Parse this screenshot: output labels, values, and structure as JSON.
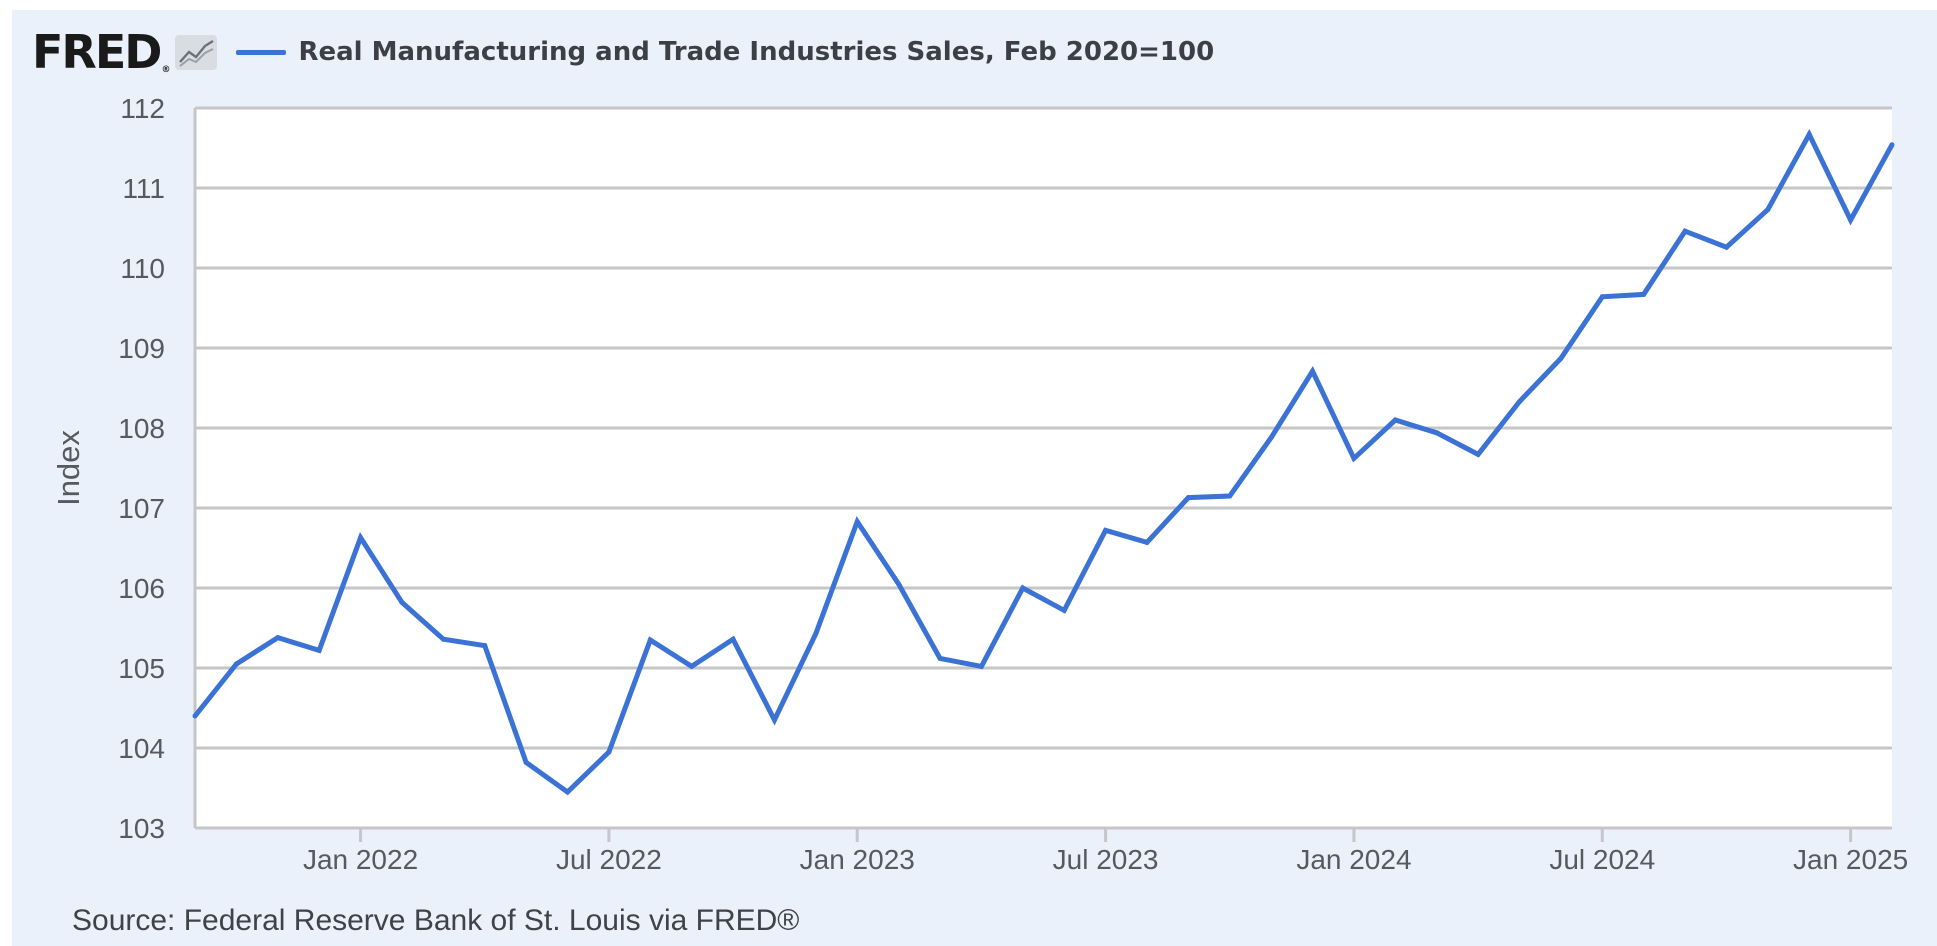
{
  "header": {
    "logo_text": "FRED",
    "logo_mark": "®",
    "logo_icon": "line-chart-icon",
    "legend_label": "Real Manufacturing and Trade Industries Sales, Feb 2020=100"
  },
  "source": "Source: Federal Reserve Bank of St. Louis via FRED®",
  "colors": {
    "series": "#3a72d6",
    "background": "#eaf1fa",
    "plot_background": "#ffffff",
    "gridline": "#c6c6c6"
  },
  "chart_data": {
    "type": "line",
    "title": "",
    "xlabel": "",
    "ylabel": "Index",
    "ylim": [
      103,
      112
    ],
    "xlim": [
      "2021-09",
      "2025-02"
    ],
    "grid": true,
    "legend_position": "top-left",
    "y_ticks": [
      "103",
      "104",
      "105",
      "106",
      "107",
      "108",
      "109",
      "110",
      "111",
      "112"
    ],
    "x_ticks": [
      {
        "label": "Jan 2022",
        "date": "2022-01"
      },
      {
        "label": "Jul 2022",
        "date": "2022-07"
      },
      {
        "label": "Jan 2023",
        "date": "2023-01"
      },
      {
        "label": "Jul 2023",
        "date": "2023-07"
      },
      {
        "label": "Jan 2024",
        "date": "2024-01"
      },
      {
        "label": "Jul 2024",
        "date": "2024-07"
      },
      {
        "label": "Jan 2025",
        "date": "2025-01"
      }
    ],
    "series": [
      {
        "name": "Real Manufacturing and Trade Industries Sales, Feb 2020=100",
        "x": [
          "2021-09",
          "2021-10",
          "2021-11",
          "2021-12",
          "2022-01",
          "2022-02",
          "2022-03",
          "2022-04",
          "2022-05",
          "2022-06",
          "2022-07",
          "2022-08",
          "2022-09",
          "2022-10",
          "2022-11",
          "2022-12",
          "2023-01",
          "2023-02",
          "2023-03",
          "2023-04",
          "2023-05",
          "2023-06",
          "2023-07",
          "2023-08",
          "2023-09",
          "2023-10",
          "2023-11",
          "2023-12",
          "2024-01",
          "2024-02",
          "2024-03",
          "2024-04",
          "2024-05",
          "2024-06",
          "2024-07",
          "2024-08",
          "2024-09",
          "2024-10",
          "2024-11",
          "2024-12",
          "2025-01",
          "2025-02"
        ],
        "values": [
          104.4,
          105.05,
          105.38,
          105.22,
          106.63,
          105.82,
          105.36,
          105.28,
          103.82,
          103.45,
          103.95,
          105.35,
          105.02,
          105.36,
          104.35,
          105.43,
          106.83,
          106.05,
          105.12,
          105.02,
          106.0,
          105.72,
          106.72,
          106.57,
          107.13,
          107.15,
          107.88,
          108.71,
          107.62,
          108.1,
          107.94,
          107.67,
          108.33,
          108.87,
          109.64,
          109.67,
          110.46,
          110.26,
          110.73,
          111.67,
          110.6,
          111.54
        ]
      }
    ]
  }
}
